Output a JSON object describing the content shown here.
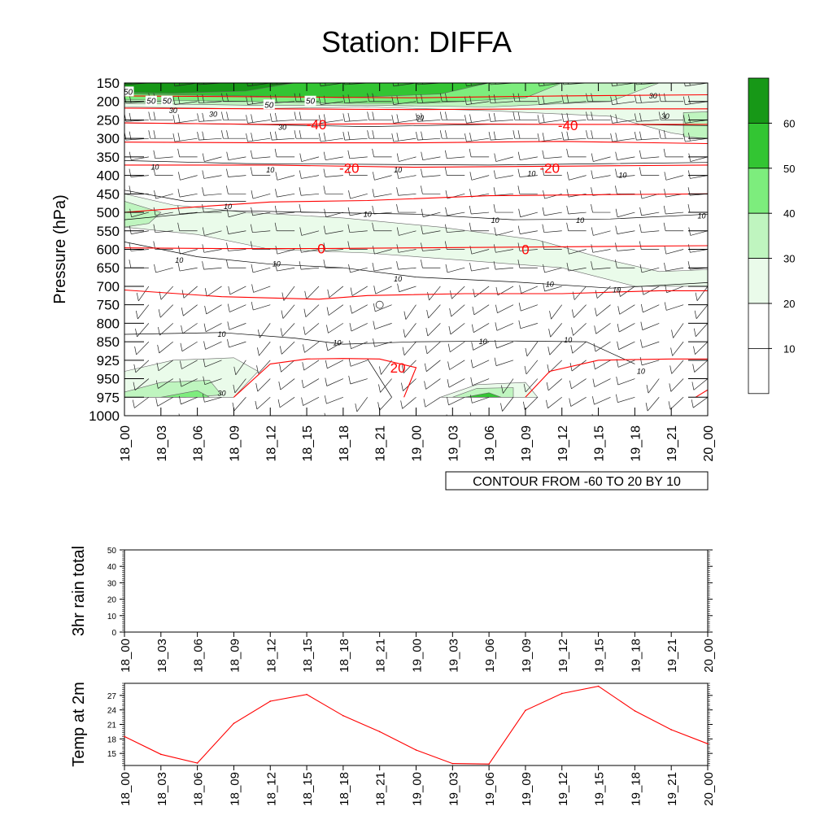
{
  "title": "Station: DIFFA",
  "colors": {
    "temp_contour": "#ff0000",
    "speed_contour": "#000000",
    "shade_fills": [
      "#ffffff",
      "#ffffff",
      "#eafbea",
      "#bff5bf",
      "#7ded7d",
      "#33c533",
      "#179817"
    ]
  },
  "chart_data": [
    {
      "type": "heatmap",
      "id": "pressure-time-section",
      "ylabel": "Pressure (hPa)",
      "pressure_levels": [
        150,
        200,
        250,
        300,
        350,
        400,
        450,
        500,
        550,
        600,
        650,
        700,
        750,
        800,
        850,
        925,
        950,
        975,
        1000
      ],
      "pressure_tick_labels": [
        "150",
        "200",
        "250",
        "300",
        "350",
        "400",
        "450",
        "500",
        "550",
        "600",
        "650",
        "700",
        "750",
        "800",
        "850",
        "925",
        "950",
        "975",
        "1000"
      ],
      "time_tick_labels": [
        "18_00",
        "18_03",
        "18_06",
        "18_09",
        "18_12",
        "18_15",
        "18_18",
        "18_21",
        "19_00",
        "19_03",
        "19_06",
        "19_09",
        "19_12",
        "19_15",
        "19_18",
        "19_21",
        "20_00"
      ],
      "shading_variable": "wind speed",
      "colorbar": {
        "levels": [
          10,
          20,
          30,
          40,
          50,
          60
        ],
        "labels": [
          "10",
          "20",
          "30",
          "40",
          "50",
          "60"
        ]
      },
      "speed_contour_labels": [
        {
          "text": "50",
          "time": 0.3,
          "p": 175
        },
        {
          "text": "50",
          "time": 2.2,
          "p": 200
        },
        {
          "text": "50",
          "time": 3.5,
          "p": 200
        },
        {
          "text": "30",
          "time": 4.0,
          "p": 225
        },
        {
          "text": "30",
          "time": 7.3,
          "p": 235
        },
        {
          "text": "50",
          "time": 11.9,
          "p": 210
        },
        {
          "text": "50",
          "time": 15.3,
          "p": 200
        },
        {
          "text": "30",
          "time": 13.0,
          "p": 270
        },
        {
          "text": "30",
          "time": 24.3,
          "p": 245
        },
        {
          "text": "30",
          "time": 43.5,
          "p": 185
        },
        {
          "text": "30",
          "time": 44.5,
          "p": 240
        },
        {
          "text": "10",
          "time": 2.5,
          "p": 378
        },
        {
          "text": "10",
          "time": 12.0,
          "p": 385
        },
        {
          "text": "10",
          "time": 22.5,
          "p": 385
        },
        {
          "text": "10",
          "time": 33.5,
          "p": 395
        },
        {
          "text": "10",
          "time": 41.0,
          "p": 400
        },
        {
          "text": "10",
          "time": 8.5,
          "p": 485
        },
        {
          "text": "10",
          "time": 20.0,
          "p": 505
        },
        {
          "text": "10",
          "time": 30.5,
          "p": 522
        },
        {
          "text": "10",
          "time": 37.5,
          "p": 522
        },
        {
          "text": "10",
          "time": 47.5,
          "p": 510
        },
        {
          "text": "10",
          "time": 4.5,
          "p": 630
        },
        {
          "text": "10",
          "time": 12.5,
          "p": 640
        },
        {
          "text": "10",
          "time": 22.5,
          "p": 680
        },
        {
          "text": "10",
          "time": 35.0,
          "p": 695
        },
        {
          "text": "10",
          "time": 40.5,
          "p": 710
        },
        {
          "text": "10",
          "time": 8.0,
          "p": 830
        },
        {
          "text": "10",
          "time": 17.5,
          "p": 855
        },
        {
          "text": "10",
          "time": 29.5,
          "p": 850
        },
        {
          "text": "10",
          "time": 36.5,
          "p": 845
        },
        {
          "text": "10",
          "time": 42.5,
          "p": 940
        },
        {
          "text": "30",
          "time": 8.0,
          "p": 970
        }
      ],
      "temperature_contours": [
        {
          "value": -40,
          "points": [
            [
              0,
              258
            ],
            [
              12,
              262
            ],
            [
              24,
              260
            ],
            [
              36,
              262
            ],
            [
              48,
              262
            ]
          ]
        },
        {
          "value": -30,
          "points": [
            [
              0,
              310
            ],
            [
              12,
              312
            ],
            [
              24,
              312
            ],
            [
              36,
              308
            ],
            [
              48,
              314
            ]
          ]
        },
        {
          "value": -20,
          "points": [
            [
              0,
              372
            ],
            [
              12,
              372
            ],
            [
              24,
              378
            ],
            [
              36,
              375
            ],
            [
              48,
              372
            ]
          ]
        },
        {
          "value": -10,
          "points": [
            [
              0,
              500
            ],
            [
              6,
              485
            ],
            [
              12,
              472
            ],
            [
              20,
              468
            ],
            [
              30,
              455
            ],
            [
              40,
              452
            ],
            [
              48,
              450
            ]
          ]
        },
        {
          "value": 0,
          "points": [
            [
              0,
              596
            ],
            [
              8,
              598
            ],
            [
              16,
              598
            ],
            [
              24,
              596
            ],
            [
              32,
              594
            ],
            [
              40,
              592
            ],
            [
              48,
              590
            ]
          ]
        },
        {
          "value": 10,
          "points": [
            [
              0,
              710
            ],
            [
              8,
              728
            ],
            [
              16,
              735
            ],
            [
              20,
              725
            ],
            [
              28,
              720
            ],
            [
              36,
              720
            ],
            [
              44,
              712
            ],
            [
              48,
              712
            ]
          ]
        },
        {
          "value": 20,
          "points": [
            [
              9,
              975
            ],
            [
              12,
              930
            ],
            [
              15,
              920
            ],
            [
              18,
              918
            ],
            [
              21,
              920
            ],
            [
              24,
              935
            ],
            [
              23,
              975
            ]
          ]
        },
        {
          "value": 20,
          "points": [
            [
              33,
              975
            ],
            [
              35,
              940
            ],
            [
              39,
              925
            ],
            [
              45,
              920
            ],
            [
              48,
              920
            ]
          ]
        },
        {
          "value": 20,
          "points": [
            [
              47,
              975
            ],
            [
              48,
              965
            ]
          ]
        },
        {
          "value": 30,
          "points": [
            [
              0,
              218
            ],
            [
              12,
              220
            ],
            [
              24,
              222
            ],
            [
              36,
              220
            ],
            [
              48,
              220
            ]
          ]
        },
        {
          "value": 30,
          "points": [
            [
              0,
              185
            ],
            [
              24,
              190
            ],
            [
              36,
              185
            ],
            [
              48,
              182
            ]
          ]
        }
      ],
      "temperature_labels": [
        {
          "text": "-40",
          "time": 15.8,
          "p": 262
        },
        {
          "text": "-40",
          "time": 36.5,
          "p": 264
        },
        {
          "text": "-20",
          "time": 18.5,
          "p": 380
        },
        {
          "text": "-20",
          "time": 35.0,
          "p": 380
        },
        {
          "text": "0",
          "time": 16.2,
          "p": 598
        },
        {
          "text": "0",
          "time": 33.0,
          "p": 600
        },
        {
          "text": "20",
          "time": 22.5,
          "p": 935
        }
      ],
      "calm_marker": {
        "time": 21.0,
        "p": 750
      },
      "info_label": "CONTOUR FROM -60 TO 20 BY 10"
    },
    {
      "type": "line",
      "id": "rain-panel",
      "ylabel": "3hr rain total",
      "ylim": [
        0,
        50
      ],
      "y_ticks": [
        0,
        10,
        20,
        30,
        40,
        50
      ],
      "y_tick_labels": [
        "0",
        "10",
        "20",
        "30",
        "40",
        "50"
      ],
      "x": [
        0,
        3,
        6,
        9,
        12,
        15,
        18,
        21,
        24,
        27,
        30,
        33,
        36,
        39,
        42,
        45,
        48
      ],
      "x_tick_labels": [
        "18_00",
        "18_03",
        "18_06",
        "18_09",
        "18_12",
        "18_15",
        "18_18",
        "18_21",
        "19_00",
        "19_03",
        "19_06",
        "19_09",
        "19_12",
        "19_15",
        "19_18",
        "19_21",
        "20_00"
      ],
      "values": [
        0,
        0,
        0,
        0,
        0,
        0,
        0,
        0,
        0,
        0,
        0,
        0,
        0,
        0,
        0,
        0,
        0
      ]
    },
    {
      "type": "line",
      "id": "temp-panel",
      "ylabel": "Temp at 2m",
      "ylim": [
        12.5,
        29.5
      ],
      "y_ticks": [
        15,
        18,
        21,
        24,
        27
      ],
      "y_tick_labels": [
        "15",
        "18",
        "21",
        "24",
        "27"
      ],
      "x": [
        0,
        3,
        6,
        9,
        12,
        15,
        18,
        21,
        24,
        27,
        30,
        33,
        36,
        39,
        42,
        45,
        48
      ],
      "x_tick_labels": [
        "18_00",
        "18_03",
        "18_06",
        "18_09",
        "18_12",
        "18_15",
        "18_18",
        "18_21",
        "19_00",
        "19_03",
        "19_06",
        "19_09",
        "19_12",
        "19_15",
        "19_18",
        "19_21",
        "20_00"
      ],
      "values": [
        18.5,
        14.8,
        13.0,
        21.2,
        25.8,
        27.2,
        22.8,
        19.5,
        15.7,
        12.9,
        12.8,
        23.9,
        27.4,
        28.9,
        23.8,
        19.9,
        17.0
      ]
    }
  ]
}
